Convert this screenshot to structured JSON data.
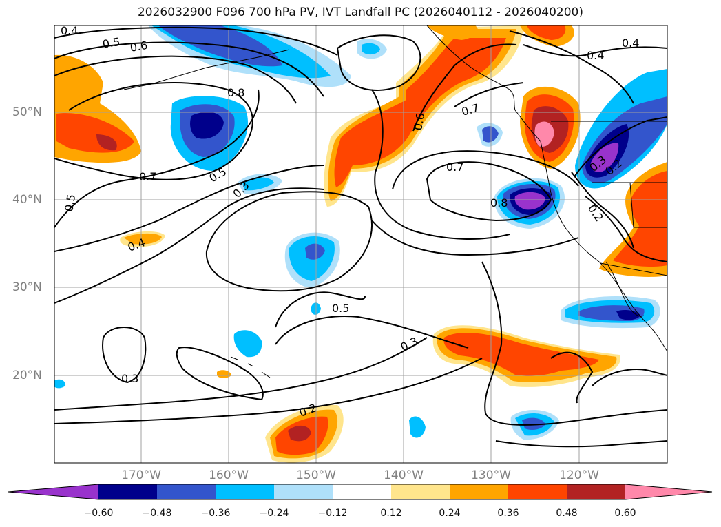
{
  "title": "2026032900 F096 700 hPa PV, IVT Landfall PC (2026040112 - 2026040200)",
  "map": {
    "lon_range": [
      -180,
      -110
    ],
    "lat_range": [
      10,
      60
    ],
    "lon_labels": [
      "170°W",
      "160°W",
      "150°W",
      "140°W",
      "130°W",
      "120°W"
    ],
    "lat_labels": [
      "50°N",
      "40°N",
      "30°N",
      "20°N"
    ],
    "contour_labels": [
      "0.4",
      "0.5",
      "0.6",
      "0.8",
      "0.7",
      "0.5",
      "0.3",
      "0.5",
      "0.4",
      "0.5",
      "0.3",
      "0.2",
      "0.3",
      "0.7",
      "0.7",
      "0.8",
      "0.4",
      "0.4",
      "0.2",
      "0.3",
      "0.2",
      "0.6"
    ]
  },
  "colorbar": {
    "colors": [
      "#9933cc",
      "#00008b",
      "#3355cc",
      "#00bfff",
      "#afe0fa",
      "#ffffff",
      "#ffe58c",
      "#ffa500",
      "#ff4500",
      "#b22222",
      "#ff88aa"
    ],
    "tick_labels": [
      "−0.60",
      "−0.48",
      "−0.36",
      "−0.24",
      "−0.12",
      "0.12",
      "0.24",
      "0.36",
      "0.48",
      "0.60"
    ]
  }
}
